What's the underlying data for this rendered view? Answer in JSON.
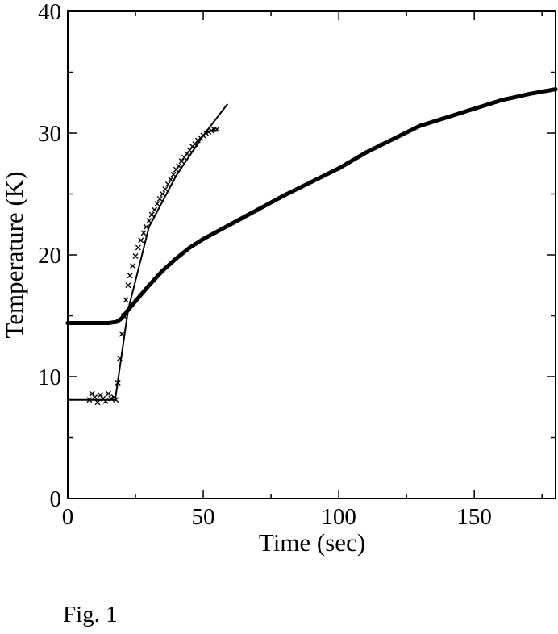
{
  "chart_data": {
    "type": "scatter",
    "xlabel": "Time (sec)",
    "ylabel": "Temperature (K)",
    "xlim": [
      0,
      180
    ],
    "ylim": [
      0,
      40
    ],
    "xticks": [
      0,
      50,
      100,
      150
    ],
    "yticks": [
      0,
      10,
      20,
      30,
      40
    ],
    "grid": false,
    "series": [
      {
        "marker": "x",
        "points": [
          [
            8,
            8.1
          ],
          [
            9,
            8.6
          ],
          [
            10,
            8.3
          ],
          [
            11,
            7.9
          ],
          [
            12,
            8.5
          ],
          [
            13,
            8.2
          ],
          [
            14,
            8.0
          ],
          [
            15,
            8.6
          ],
          [
            16,
            8.2
          ],
          [
            17,
            8.3
          ],
          [
            17.8,
            8.1
          ],
          [
            18.5,
            9.5
          ],
          [
            19.2,
            11.5
          ],
          [
            20,
            13.5
          ],
          [
            20.7,
            15.0
          ],
          [
            21.5,
            16.3
          ],
          [
            22.3,
            17.5
          ],
          [
            23,
            18.3
          ],
          [
            24,
            19.1
          ],
          [
            25,
            19.9
          ],
          [
            26,
            20.6
          ],
          [
            27,
            21.2
          ],
          [
            28,
            21.8
          ],
          [
            29,
            22.3
          ],
          [
            30,
            22.8
          ],
          [
            31,
            23.3
          ],
          [
            32,
            23.7
          ],
          [
            33,
            24.2
          ],
          [
            34,
            24.6
          ],
          [
            35,
            25.0
          ],
          [
            36,
            25.4
          ],
          [
            37,
            25.8
          ],
          [
            38,
            26.2
          ],
          [
            39,
            26.6
          ],
          [
            40,
            27.0
          ],
          [
            41,
            27.3
          ],
          [
            42,
            27.7
          ],
          [
            43,
            28.0
          ],
          [
            44,
            28.3
          ],
          [
            45,
            28.6
          ],
          [
            46,
            28.9
          ],
          [
            47,
            29.1
          ],
          [
            48,
            29.4
          ],
          [
            49,
            29.6
          ],
          [
            50,
            29.8
          ],
          [
            51,
            30.0
          ],
          [
            52,
            30.1
          ],
          [
            53,
            30.2
          ],
          [
            54,
            30.3
          ],
          [
            55,
            30.3
          ]
        ]
      },
      {
        "marker": "dot",
        "points": [
          [
            0,
            14.4
          ],
          [
            5,
            14.4
          ],
          [
            10,
            14.4
          ],
          [
            15,
            14.4
          ],
          [
            18,
            14.5
          ],
          [
            20,
            14.8
          ],
          [
            22,
            15.4
          ],
          [
            25,
            16.2
          ],
          [
            30,
            17.5
          ],
          [
            35,
            18.7
          ],
          [
            40,
            19.7
          ],
          [
            45,
            20.6
          ],
          [
            50,
            21.3
          ],
          [
            60,
            22.5
          ],
          [
            70,
            23.7
          ],
          [
            80,
            24.9
          ],
          [
            90,
            26.0
          ],
          [
            100,
            27.1
          ],
          [
            110,
            28.4
          ],
          [
            120,
            29.5
          ],
          [
            130,
            30.6
          ],
          [
            140,
            31.3
          ],
          [
            150,
            32.0
          ],
          [
            160,
            32.7
          ],
          [
            170,
            33.2
          ],
          [
            180,
            33.6
          ]
        ]
      }
    ],
    "fit_lines": [
      {
        "points": [
          [
            0,
            8.1
          ],
          [
            18,
            8.1
          ]
        ]
      },
      {
        "points": [
          [
            17.5,
            8.1
          ],
          [
            22.3,
            15.5
          ]
        ]
      },
      {
        "points": [
          [
            22.3,
            15.5
          ],
          [
            30,
            22.3
          ],
          [
            40,
            26.5
          ],
          [
            50,
            29.8
          ],
          [
            59,
            32.4
          ]
        ]
      },
      {
        "points": [
          [
            0,
            14.3
          ],
          [
            18,
            14.4
          ]
        ]
      },
      {
        "points": [
          [
            115,
            29.1
          ],
          [
            120,
            29.5
          ]
        ]
      }
    ]
  },
  "figure": {
    "caption": "Fig. 1"
  }
}
